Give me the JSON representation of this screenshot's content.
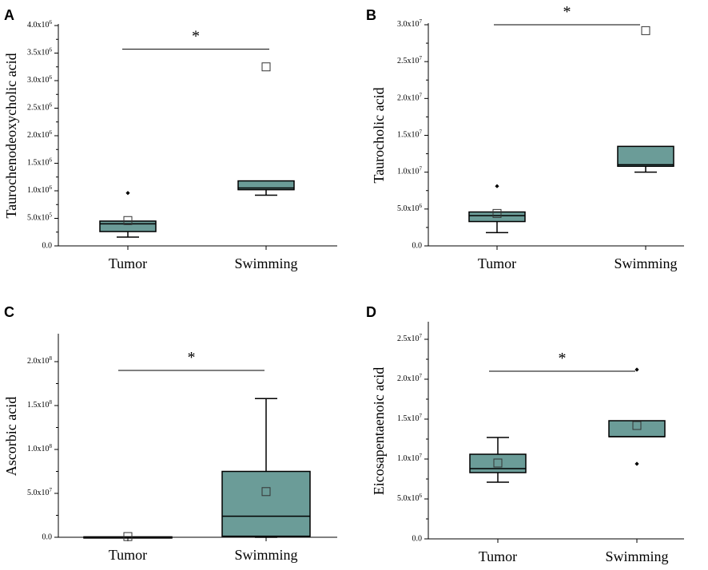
{
  "colors": {
    "box_fill": "#6b9c98",
    "box_stroke": "#000000",
    "axis": "#000000"
  },
  "chart_data": [
    {
      "id": "A",
      "type": "box",
      "panel_letter": "A",
      "ylabel": "Taurochenodeoxycholic acid",
      "ylim": [
        0,
        4000000
      ],
      "yticks": [
        0,
        500000,
        1000000,
        1500000,
        2000000,
        2500000,
        3000000,
        3500000,
        4000000
      ],
      "ytick_labels": [
        "0.0",
        "5.0x10^5",
        "1.0x10^6",
        "1.5x10^6",
        "2.0x10^6",
        "2.5x10^6",
        "3.0x10^6",
        "3.5x10^6",
        "4.0x10^6"
      ],
      "categories": [
        "Tumor",
        "Swimming"
      ],
      "boxes": [
        {
          "name": "Tumor",
          "q1": 260000,
          "median": 400000,
          "q3": 450000,
          "whisker_low": 160000,
          "whisker_high": 450000,
          "mean": 460000,
          "outliers": [
            960000
          ]
        },
        {
          "name": "Swimming",
          "q1": 1020000,
          "median": 1050000,
          "q3": 1180000,
          "whisker_low": 920000,
          "whisker_high": 1180000,
          "mean": 3250000,
          "outliers": []
        }
      ],
      "significance": "*"
    },
    {
      "id": "B",
      "type": "box",
      "panel_letter": "B",
      "ylabel": "Taurocholic acid",
      "ylim": [
        0,
        30000000
      ],
      "yticks": [
        0,
        5000000,
        10000000,
        15000000,
        20000000,
        25000000,
        30000000
      ],
      "ytick_labels": [
        "0.0",
        "5.0x10^6",
        "1.0x10^7",
        "1.5x10^7",
        "2.0x10^7",
        "2.5x10^7",
        "3.0x10^7"
      ],
      "categories": [
        "Tumor",
        "Swimming"
      ],
      "boxes": [
        {
          "name": "Tumor",
          "q1": 3300000,
          "median": 4100000,
          "q3": 4600000,
          "whisker_low": 1800000,
          "whisker_high": 4600000,
          "mean": 4400000,
          "outliers": [
            8100000
          ]
        },
        {
          "name": "Swimming",
          "q1": 10800000,
          "median": 11000000,
          "q3": 13500000,
          "whisker_low": 10000000,
          "whisker_high": 13500000,
          "mean": 29200000,
          "outliers": []
        }
      ],
      "significance": "*"
    },
    {
      "id": "C",
      "type": "box",
      "panel_letter": "C",
      "ylabel": "Ascorbic acid",
      "ylim": [
        0,
        230000000
      ],
      "yticks": [
        0,
        50000000,
        100000000,
        150000000,
        200000000
      ],
      "ytick_labels": [
        "0.0",
        "5.0x10^7",
        "1.0x10^8",
        "1.5x10^8",
        "2.0x10^8"
      ],
      "categories": [
        "Tumor",
        "Swimming"
      ],
      "boxes": [
        {
          "name": "Tumor",
          "q1": 0,
          "median": 200000,
          "q3": 500000,
          "whisker_low": 0,
          "whisker_high": 500000,
          "mean": 800000,
          "outliers": []
        },
        {
          "name": "Swimming",
          "q1": 1200000,
          "median": 24000000,
          "q3": 75000000,
          "whisker_low": 0,
          "whisker_high": 158000000,
          "mean": 52000000,
          "outliers": []
        }
      ],
      "significance": "*"
    },
    {
      "id": "D",
      "type": "box",
      "panel_letter": "D",
      "ylabel": "Eicosapentaenoic acid",
      "ylim": [
        0,
        27000000
      ],
      "yticks": [
        0,
        5000000,
        10000000,
        15000000,
        20000000,
        25000000
      ],
      "ytick_labels": [
        "0.0",
        "5.0x10^6",
        "1.0x10^7",
        "1.5x10^7",
        "2.0x10^7",
        "2.5x10^7"
      ],
      "categories": [
        "Tumor",
        "Swimming"
      ],
      "boxes": [
        {
          "name": "Tumor",
          "q1": 8300000,
          "median": 8800000,
          "q3": 10600000,
          "whisker_low": 7100000,
          "whisker_high": 12700000,
          "mean": 9500000,
          "outliers": []
        },
        {
          "name": "Swimming",
          "q1": 12800000,
          "median": 12800000,
          "q3": 14800000,
          "whisker_low": 12800000,
          "whisker_high": 14800000,
          "mean": 14200000,
          "outliers": [
            21200000,
            9400000
          ]
        }
      ],
      "significance": "*"
    }
  ]
}
